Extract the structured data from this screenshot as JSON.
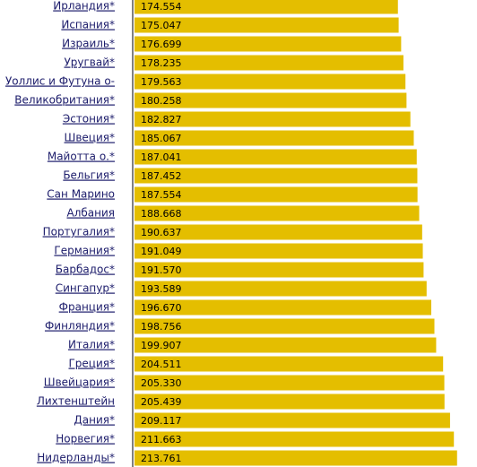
{
  "chart_data": {
    "type": "bar",
    "orientation": "horizontal",
    "color": "#e4be00",
    "categories": [
      "Ирландия*",
      "Испания*",
      "Израиль*",
      "Уругвай*",
      "Уоллис и Футуна о-",
      "Великобритания*",
      "Эстония*",
      "Швеция*",
      "Майотта о.*",
      "Бельгия*",
      "Сан Марино",
      "Албания",
      "Португалия*",
      "Германия*",
      "Барбадос*",
      "Сингапур*",
      "Франция*",
      "Финляндия*",
      "Италия*",
      "Греция*",
      "Швейцария*",
      "Лихтенштейн",
      "Дания*",
      "Норвегия*",
      "Нидерланды*"
    ],
    "values": [
      174.554,
      175.047,
      176.699,
      178.235,
      179.563,
      180.258,
      182.827,
      185.067,
      187.041,
      187.452,
      187.554,
      188.668,
      190.637,
      191.049,
      191.57,
      193.589,
      196.67,
      198.756,
      199.907,
      204.511,
      205.33,
      205.439,
      209.117,
      211.663,
      213.761
    ],
    "value_labels": [
      "174.554",
      "175.047",
      "176.699",
      "178.235",
      "179.563",
      "180.258",
      "182.827",
      "185.067",
      "187.041",
      "187.452",
      "187.554",
      "188.668",
      "190.637",
      "191.049",
      "191.570",
      "193.589",
      "196.670",
      "198.756",
      "199.907",
      "204.511",
      "205.330",
      "205.439",
      "209.117",
      "211.663",
      "213.761"
    ]
  }
}
